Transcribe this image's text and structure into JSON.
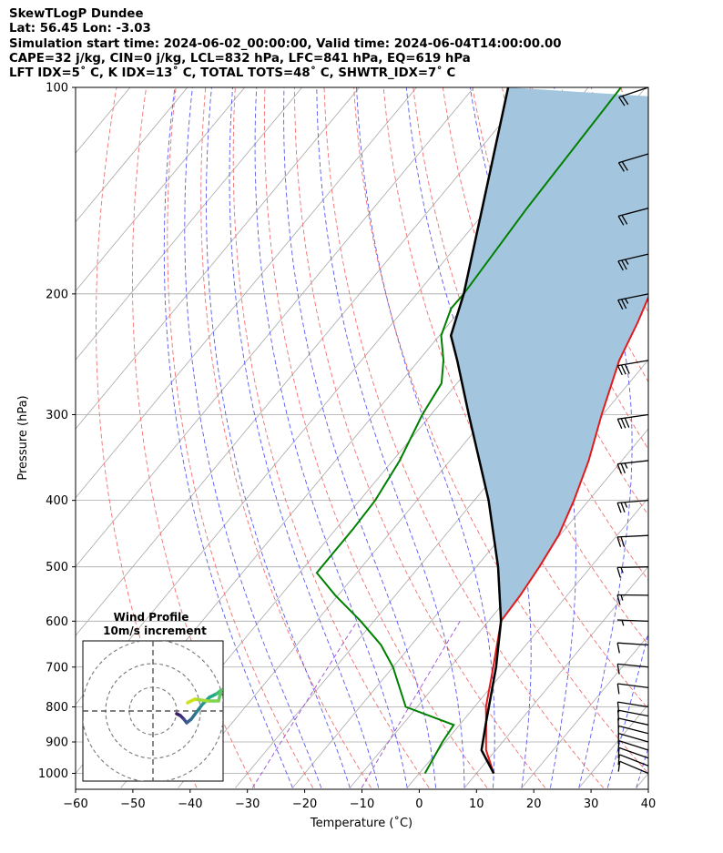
{
  "header": {
    "line1": "SkewTLogP Dundee",
    "line2": "Lat: 56.45   Lon: -3.03",
    "line3": "Simulation start time: 2024-06-02_00:00:00, Valid time: 2024-06-04T14:00:00.00",
    "line4": "CAPE=32 j/kg, CIN=0 j/kg, LCL=832 hPa, LFC=841 hPa, EQ=619 hPa",
    "line5": "LFT IDX=5˚ C, K IDX=13˚ C, TOTAL TOTS=48˚ C, SHWTR_IDX=7˚ C"
  },
  "hodograph": {
    "title": "Wind Profile",
    "subtitle": "10m/s increment"
  },
  "colors": {
    "temperature": "#e31a1c",
    "dewpoint": "#008000",
    "parcel": "#000000",
    "cape_fill": "#a3c6de",
    "dry_adiabat": "#f07070",
    "moist_adiabat": "#5a5af0",
    "mixing_ratio": "#9a4fcf",
    "isotherm": "#a8a8a8",
    "isobar": "#a8a8a8"
  },
  "chart_data": {
    "type": "line",
    "subtype": "skew-T log-P",
    "xlabel": "Temperature (˚C)",
    "ylabel": "Pressure (hPa)",
    "xlim": [
      -60,
      40
    ],
    "ylim": [
      1040,
      100
    ],
    "y_scale": "log",
    "x_ticks": [
      -60,
      -50,
      -40,
      -30,
      -20,
      -10,
      0,
      10,
      20,
      30,
      40
    ],
    "x_tick_labels": [
      "−60",
      "−50",
      "−40",
      "−30",
      "−20",
      "−10",
      "0",
      "10",
      "20",
      "30",
      "40"
    ],
    "y_ticks": [
      1000,
      900,
      800,
      700,
      600,
      500,
      400,
      300,
      200,
      100
    ],
    "y_tick_labels": [
      "1000",
      "900",
      "800",
      "700",
      "600",
      "500",
      "400",
      "300",
      "200",
      "100"
    ],
    "grid": true,
    "series": [
      {
        "role": "temperature",
        "points": [
          [
            1000,
            13.0
          ],
          [
            925,
            8.3
          ],
          [
            841,
            4.2
          ],
          [
            800,
            2.0
          ],
          [
            700,
            -2.5
          ],
          [
            600,
            -7.8
          ],
          [
            550,
            -8.2
          ],
          [
            500,
            -9.0
          ],
          [
            450,
            -10.2
          ],
          [
            400,
            -12.6
          ],
          [
            350,
            -15.8
          ],
          [
            300,
            -20.2
          ],
          [
            250,
            -25.0
          ],
          [
            220,
            -27.3
          ],
          [
            200,
            -29.3
          ],
          [
            175,
            -33.2
          ],
          [
            150,
            -38.2
          ],
          [
            125,
            -44.5
          ],
          [
            110,
            -48.5
          ],
          [
            100,
            -51.5
          ]
        ]
      },
      {
        "role": "dewpoint",
        "points": [
          [
            1000,
            1.0
          ],
          [
            900,
            -0.5
          ],
          [
            850,
            -1.0
          ],
          [
            800,
            -12.0
          ],
          [
            700,
            -20.0
          ],
          [
            650,
            -25.3
          ],
          [
            600,
            -32.3
          ],
          [
            550,
            -40.5
          ],
          [
            510,
            -47.0
          ],
          [
            500,
            -47.0
          ],
          [
            440,
            -47.0
          ],
          [
            400,
            -47.3
          ],
          [
            350,
            -48.8
          ],
          [
            300,
            -51.5
          ],
          [
            270,
            -52.7
          ],
          [
            250,
            -55.7
          ],
          [
            230,
            -59.7
          ],
          [
            210,
            -61.9
          ],
          [
            200,
            -61.8
          ],
          [
            150,
            -63.2
          ],
          [
            100,
            -64.3
          ]
        ]
      },
      {
        "role": "parcel",
        "points": [
          [
            1000,
            13.0
          ],
          [
            925,
            7.5
          ],
          [
            841,
            4.2
          ],
          [
            700,
            -2.0
          ],
          [
            600,
            -7.8
          ],
          [
            500,
            -16.2
          ],
          [
            400,
            -27.5
          ],
          [
            300,
            -43.4
          ],
          [
            250,
            -53.3
          ],
          [
            230,
            -58.0
          ],
          [
            200,
            -61.8
          ],
          [
            150,
            -71.0
          ],
          [
            100,
            -84.0
          ]
        ]
      }
    ],
    "cape_region": {
      "from_hpa": 619,
      "to_hpa": 100
    },
    "wind_barbs": {
      "pressures": [
        1000,
        975,
        950,
        925,
        900,
        875,
        850,
        825,
        800,
        750,
        700,
        650,
        600,
        550,
        500,
        450,
        400,
        350,
        300,
        250,
        200,
        175,
        150,
        125,
        100
      ],
      "speed_kt": [
        10,
        10,
        10,
        10,
        10,
        10,
        10,
        10,
        10,
        10,
        10,
        10,
        5,
        15,
        15,
        20,
        25,
        25,
        30,
        30,
        25,
        25,
        20,
        20,
        20
      ]
    }
  }
}
